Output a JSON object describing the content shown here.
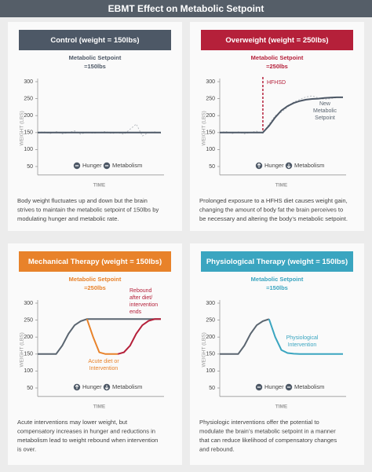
{
  "title": "EBMT Effect on Metabolic Setpoint",
  "chart_data": [
    {
      "type": "line",
      "title": "Control (weight = 150lbs)",
      "subtitle": [
        "Metabolic Setpoint",
        "=150lbs"
      ],
      "header_color": "#4d5866",
      "ylabel": "WEIGHT (LBS)",
      "xlabel": "TIME",
      "ylim": [
        25,
        300
      ],
      "yticks": [
        50,
        100,
        150,
        200,
        250,
        300
      ],
      "series": [
        {
          "color": "#b8bcc2",
          "dash": true,
          "values": [
            150,
            152,
            147,
            153,
            146,
            150,
            155,
            145,
            152,
            148,
            150,
            153,
            147,
            150,
            145,
            160,
            175,
            140,
            150,
            152,
            148
          ]
        },
        {
          "color": "#4d5866",
          "values": [
            150,
            150,
            150,
            150,
            150,
            150,
            150,
            150,
            150,
            150,
            150,
            150,
            150,
            150,
            150,
            150,
            150,
            150,
            150,
            150,
            150
          ]
        }
      ],
      "legend": [
        {
          "label": "Hunger",
          "icon": "minus"
        },
        {
          "label": "Metabolism",
          "icon": "minus"
        }
      ],
      "annotations": [],
      "caption": [
        "Body weight fluctuates up and down but the brain",
        "strives to maintain the metabolic setpoint of 150lbs by",
        "modulating hunger and metabolic rate."
      ]
    },
    {
      "type": "line",
      "title": "Overweight (weight = 250lbs)",
      "subtitle": [
        "Metabolic Setpoint",
        "=250lbs"
      ],
      "header_color": "#b5203a",
      "ylabel": "WEIGHT (LBS)",
      "xlabel": "TIME",
      "ylim": [
        25,
        300
      ],
      "yticks": [
        50,
        100,
        150,
        200,
        250,
        300
      ],
      "series": [
        {
          "color": "#b8bcc2",
          "dash": true,
          "values": [
            150,
            153,
            147,
            152,
            146,
            151,
            154,
            148,
            175,
            200,
            210,
            225,
            240,
            248,
            255,
            258,
            252,
            248,
            250,
            253,
            255
          ]
        },
        {
          "color": "#4d5866",
          "values": [
            150,
            150,
            150,
            150,
            150,
            150,
            150,
            150,
            170,
            195,
            215,
            228,
            237,
            243,
            247,
            249,
            250,
            252,
            253,
            254,
            254
          ]
        }
      ],
      "marker": {
        "label": "HFHSD",
        "x": 7,
        "color": "#b5203a"
      },
      "legend": [
        {
          "label": "Hunger",
          "icon": "up"
        },
        {
          "label": "Metabolism",
          "icon": "down"
        }
      ],
      "annotations": [
        {
          "text": [
            "New",
            "Metabolic",
            "Setpoint"
          ],
          "color": "#5a6570"
        }
      ],
      "caption": [
        "Prolonged exposure to a HFHS diet causes weight gain,",
        "changing the amount of body fat the brain perceives to",
        "be necessary and altering the body’s metabolic setpoint."
      ]
    },
    {
      "type": "line",
      "title": "Mechanical Therapy (weight = 150lbs)",
      "subtitle": [
        "Metabolic Setpoint",
        "=250lbs"
      ],
      "header_color": "#e8822a",
      "ylabel": "WEIGHT (LBS)",
      "xlabel": "TIME",
      "ylim": [
        25,
        300
      ],
      "yticks": [
        50,
        100,
        150,
        200,
        250,
        300
      ],
      "series": [
        {
          "color": "#5a6570",
          "values": [
            150,
            150,
            150,
            150,
            175,
            210,
            235,
            247,
            253,
            253,
            253,
            253,
            253,
            253,
            253,
            253,
            253,
            253,
            253,
            253,
            253
          ]
        },
        {
          "color": "#e8822a",
          "values": [
            null,
            null,
            null,
            null,
            null,
            null,
            null,
            null,
            253,
            200,
            155,
            150,
            150,
            150,
            null,
            null,
            null,
            null,
            null,
            null,
            null
          ]
        },
        {
          "color": "#b5203a",
          "values": [
            null,
            null,
            null,
            null,
            null,
            null,
            null,
            null,
            null,
            null,
            null,
            null,
            null,
            150,
            155,
            175,
            210,
            235,
            248,
            253,
            253
          ]
        }
      ],
      "legend": [
        {
          "label": "Hunger",
          "icon": "up"
        },
        {
          "label": "Metabolism",
          "icon": "down"
        }
      ],
      "annotations": [
        {
          "text": [
            "Rebound",
            "after diet/",
            "intervention",
            "ends"
          ],
          "color": "#b5203a"
        },
        {
          "text": [
            "Acute diet or",
            "Intervention"
          ],
          "color": "#e8822a"
        }
      ],
      "caption": [
        "Acute interventions may lower weight, but",
        "compensatory increases in hunger and reductions in",
        "metabolism lead to weight rebound when intervention",
        "is over."
      ]
    },
    {
      "type": "line",
      "title": "Physiological Therapy (weight = 150lbs)",
      "subtitle": [
        "Metabolic Setpoint",
        "=150lbs"
      ],
      "header_color": "#3aa5c0",
      "ylabel": "WEIGHT (LBS)",
      "xlabel": "TIME",
      "ylim": [
        25,
        300
      ],
      "yticks": [
        50,
        100,
        150,
        200,
        250,
        300
      ],
      "series": [
        {
          "color": "#5a6570",
          "values": [
            150,
            150,
            150,
            150,
            175,
            210,
            235,
            247,
            253,
            null,
            null,
            null,
            null,
            null,
            null,
            null,
            null,
            null,
            null,
            null,
            null
          ]
        },
        {
          "color": "#3aa5c0",
          "values": [
            null,
            null,
            null,
            null,
            null,
            null,
            null,
            null,
            253,
            200,
            162,
            153,
            151,
            150,
            150,
            150,
            150,
            150,
            150,
            150,
            150
          ]
        }
      ],
      "legend": [
        {
          "label": "Hunger",
          "icon": "minus"
        },
        {
          "label": "Metabolism",
          "icon": "minus"
        }
      ],
      "annotations": [
        {
          "text": [
            "Physiological",
            "Intervention"
          ],
          "color": "#3aa5c0"
        }
      ],
      "caption": [
        "Physiologic interventions offer the potential to",
        "modulate the brain’s metabolic setpoint in a manner",
        "that can reduce likelihood of compensatory changes",
        "and rebound."
      ]
    }
  ]
}
